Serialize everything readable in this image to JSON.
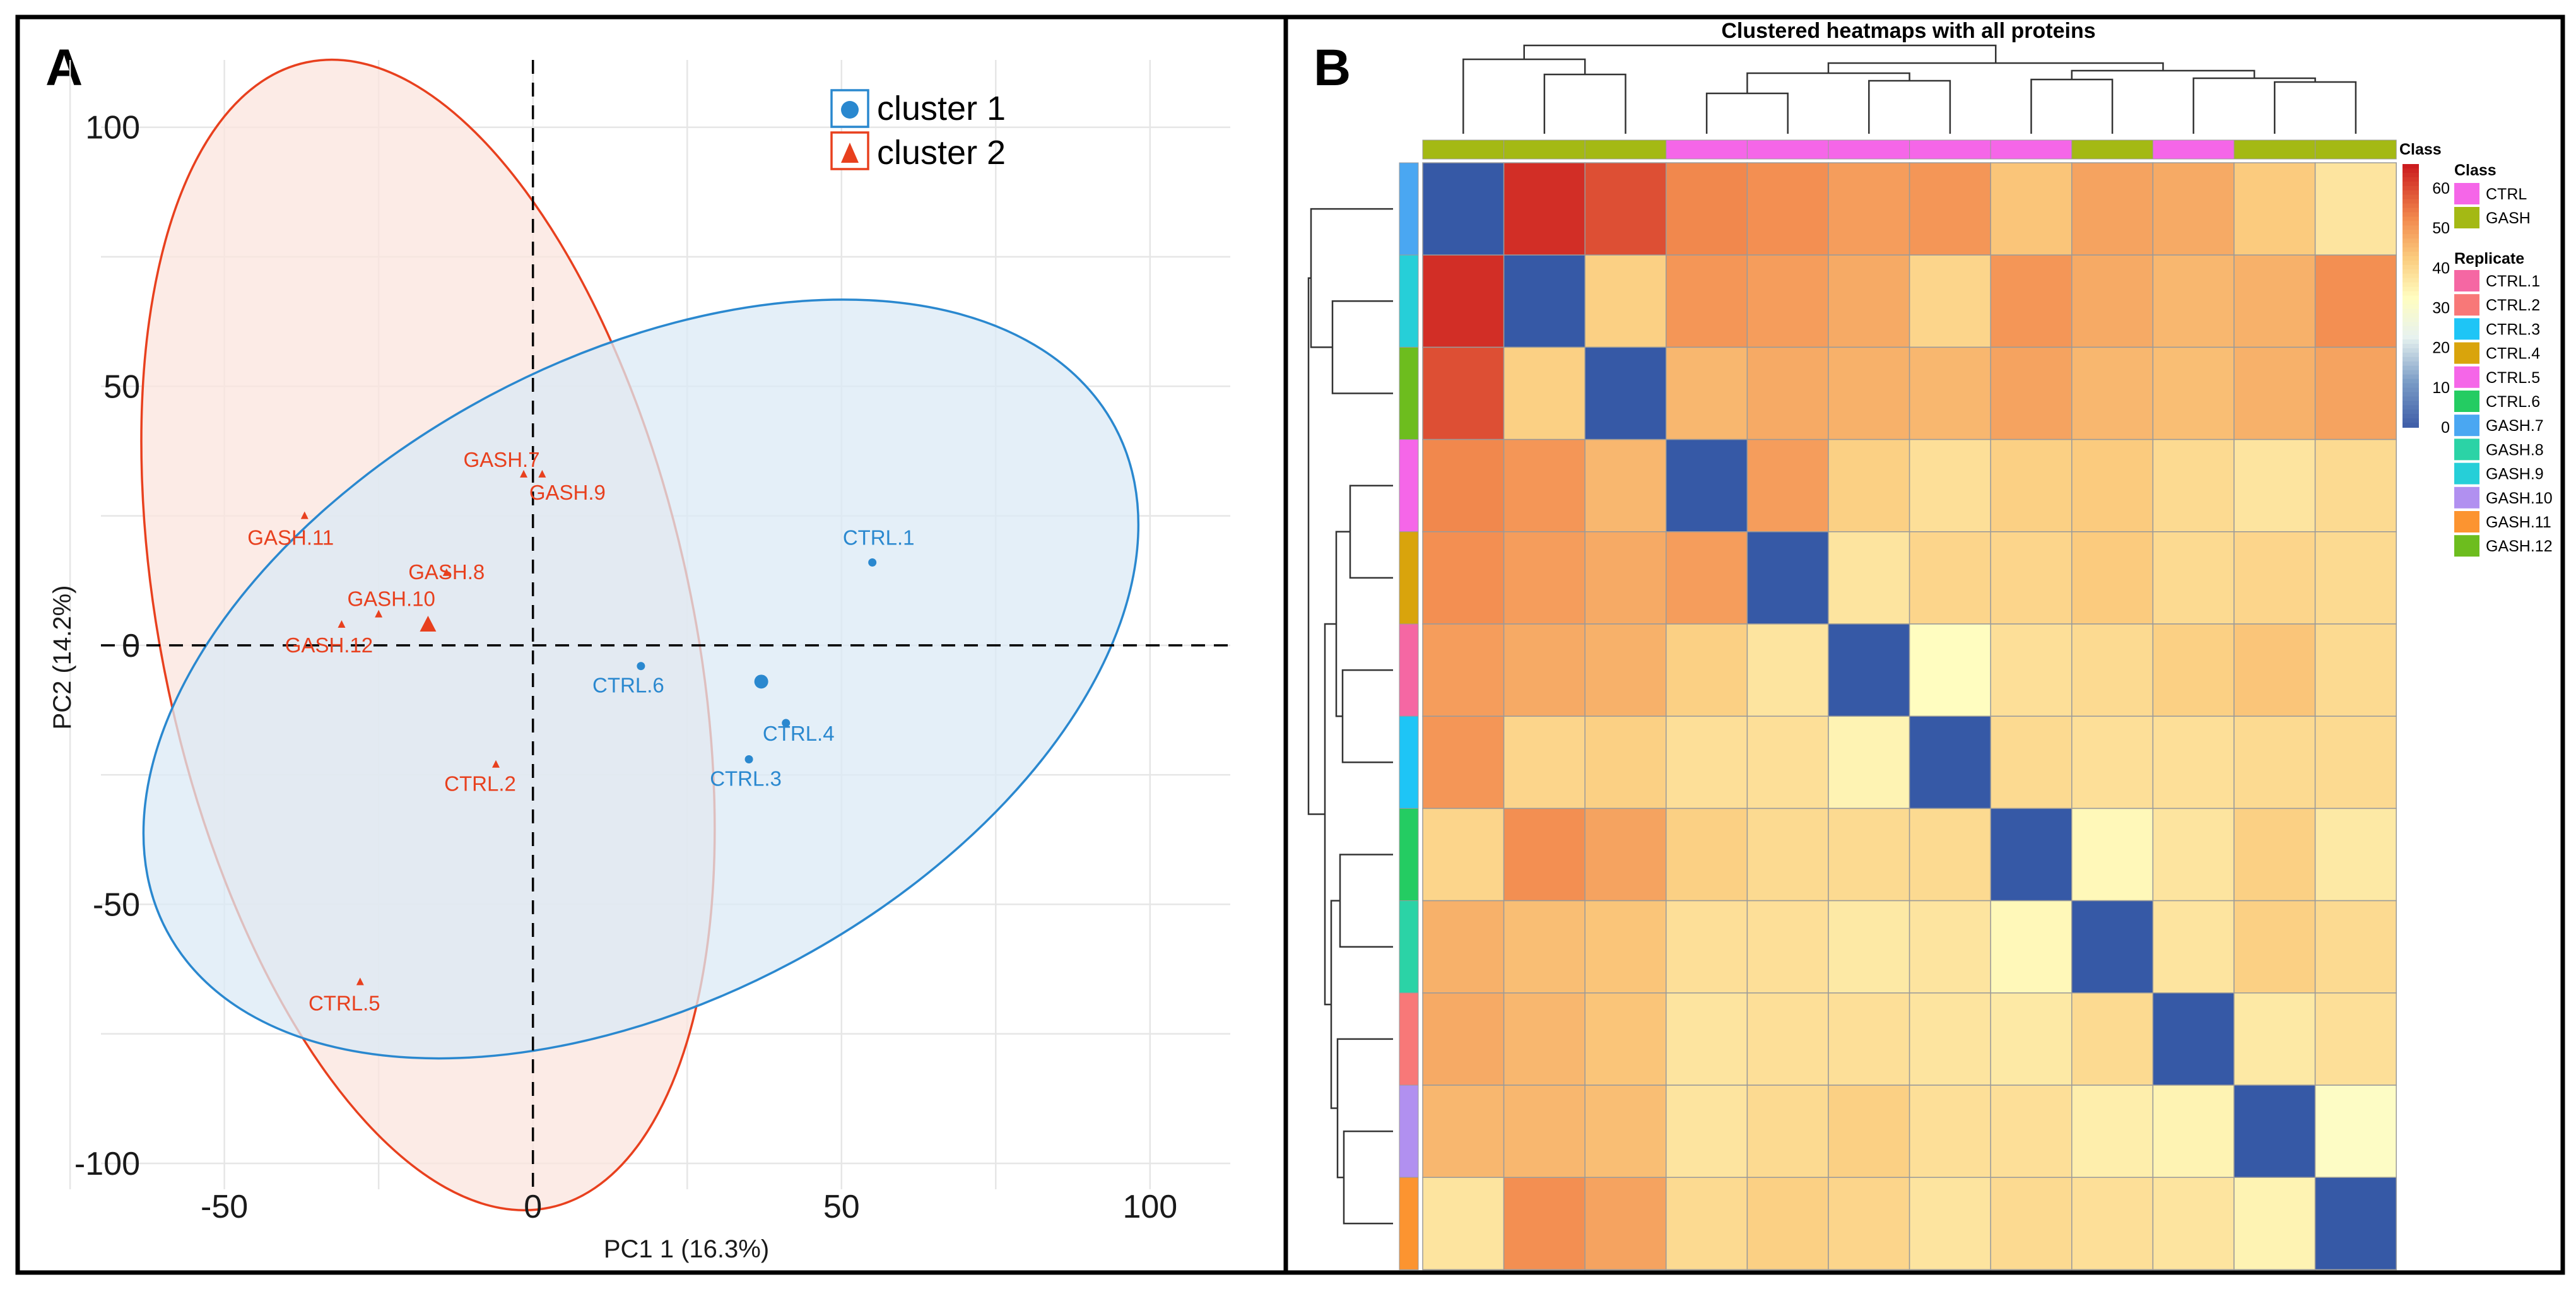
{
  "chart_data": [
    {
      "panel": "A",
      "type": "scatter",
      "title": "",
      "xlabel": "PC1 1 (16.3%)",
      "ylabel": "PC2  (14.2%)",
      "xlim": [
        -70,
        113
      ],
      "ylim": [
        -105,
        113
      ],
      "xticks": [
        -50,
        0,
        50,
        100
      ],
      "yticks": [
        100,
        50,
        0,
        -50,
        -100
      ],
      "xtick_labels": [
        "-50",
        "0",
        "50",
        "100"
      ],
      "ytick_labels": [
        "100",
        "50",
        "0",
        "-50",
        "-100"
      ],
      "legend": [
        "cluster 1",
        "cluster 2"
      ],
      "series": [
        {
          "name": "cluster 1",
          "color": "#2a88cf",
          "marker": "circle",
          "centroid": [
            37,
            -7
          ],
          "ellipse": {
            "center": [
              17.5,
              -6.5
            ],
            "rx": 87,
            "ry": 62,
            "angle_deg": -28,
            "fill": "#dbeaf6"
          },
          "points": [
            {
              "label": "CTRL.1",
              "x": 55,
              "y": 16
            },
            {
              "label": "CTRL.6",
              "x": 17.5,
              "y": -4
            },
            {
              "label": "CTRL.4",
              "x": 41,
              "y": -15
            },
            {
              "label": "CTRL.3",
              "x": 35,
              "y": -22
            }
          ]
        },
        {
          "name": "cluster 2",
          "color": "#e8401e",
          "marker": "triangle",
          "centroid": [
            -17,
            4
          ],
          "ellipse": {
            "center": [
              -17,
              2
            ],
            "rx": 43,
            "ry": 113,
            "angle_deg": -12,
            "fill": "#fbe4de"
          },
          "points": [
            {
              "label": "GASH.7",
              "x": -1.5,
              "y": 33
            },
            {
              "label": "GASH.9",
              "x": 1.5,
              "y": 33
            },
            {
              "label": "GASH.11",
              "x": -37,
              "y": 25
            },
            {
              "label": "GASH.8",
              "x": -14,
              "y": 14
            },
            {
              "label": "GASH.10",
              "x": -25,
              "y": 6
            },
            {
              "label": "GASH.12",
              "x": -31,
              "y": 4
            },
            {
              "label": "CTRL.2",
              "x": -6,
              "y": -23
            },
            {
              "label": "CTRL.5",
              "x": -28,
              "y": -65
            }
          ]
        }
      ]
    },
    {
      "panel": "B",
      "type": "heatmap",
      "title": "Clustered heatmaps with all proteins",
      "colorbar_title": "Class",
      "colorbar_ticks": [
        60,
        50,
        40,
        30,
        20,
        10,
        0
      ],
      "color_scale": [
        "#3b5aa6",
        "#ffffbf",
        "#cc1d1f"
      ],
      "column_class": [
        "GASH",
        "GASH",
        "GASH",
        "CTRL",
        "CTRL",
        "CTRL",
        "CTRL",
        "CTRL",
        "GASH",
        "CTRL",
        "GASH",
        "GASH"
      ],
      "row_replicates": [
        "GASH.7",
        "GASH.9",
        "GASH.12",
        "CTRL.5",
        "CTRL.4",
        "CTRL.1",
        "CTRL.3",
        "CTRL.6",
        "GASH.8",
        "CTRL.2",
        "GASH.10",
        "GASH.11"
      ],
      "values": [
        [
          0,
          64,
          60,
          53,
          52,
          50,
          51,
          44,
          49,
          48,
          43,
          38
        ],
        [
          64,
          0,
          42,
          51,
          50,
          48,
          41,
          51,
          48,
          46,
          47,
          52
        ],
        [
          60,
          42,
          0,
          46,
          48,
          47,
          46,
          49,
          46,
          45,
          47,
          49
        ],
        [
          53,
          51,
          46,
          0,
          50,
          42,
          39,
          42,
          43,
          40,
          38,
          40
        ],
        [
          52,
          50,
          48,
          50,
          0,
          38,
          41,
          41,
          43,
          40,
          41,
          40
        ],
        [
          50,
          48,
          47,
          42,
          38,
          0,
          33,
          39,
          40,
          42,
          44,
          40
        ],
        [
          51,
          41,
          42,
          39,
          39,
          35,
          0,
          40,
          39,
          39,
          40,
          40
        ],
        [
          41,
          52,
          49,
          42,
          40,
          40,
          40,
          0,
          34,
          38,
          42,
          37
        ],
        [
          47,
          45,
          44,
          39,
          39,
          37,
          38,
          34,
          0,
          38,
          42,
          40
        ],
        [
          48,
          46,
          44,
          38,
          39,
          39,
          38,
          37,
          40,
          0,
          37,
          39
        ],
        [
          46,
          46,
          45,
          38,
          40,
          42,
          39,
          39,
          36,
          35,
          0,
          32
        ],
        [
          38,
          52,
          49,
          40,
          42,
          41,
          38,
          40,
          39,
          38,
          35,
          0
        ]
      ],
      "legend_class": {
        "title": "Class",
        "items": [
          {
            "label": "CTRL",
            "color": "#f566e8"
          },
          {
            "label": "GASH",
            "color": "#a4b914"
          }
        ]
      },
      "legend_replicate": {
        "title": "Replicate",
        "items": [
          {
            "label": "CTRL.1",
            "color": "#f567a3"
          },
          {
            "label": "CTRL.2",
            "color": "#f87878"
          },
          {
            "label": "CTRL.3",
            "color": "#1ec5f6"
          },
          {
            "label": "CTRL.4",
            "color": "#d9a40c"
          },
          {
            "label": "CTRL.5",
            "color": "#f566e8"
          },
          {
            "label": "CTRL.6",
            "color": "#24cc62"
          },
          {
            "label": "GASH.7",
            "color": "#4aa7f2"
          },
          {
            "label": "GASH.8",
            "color": "#2bd3a6"
          },
          {
            "label": "GASH.9",
            "color": "#26cfd8"
          },
          {
            "label": "GASH.10",
            "color": "#b190f0"
          },
          {
            "label": "GASH.11",
            "color": "#fc9430"
          },
          {
            "label": "GASH.12",
            "color": "#6dbd1e"
          }
        ]
      }
    }
  ],
  "panel_labels": {
    "a": "A",
    "b": "B"
  }
}
